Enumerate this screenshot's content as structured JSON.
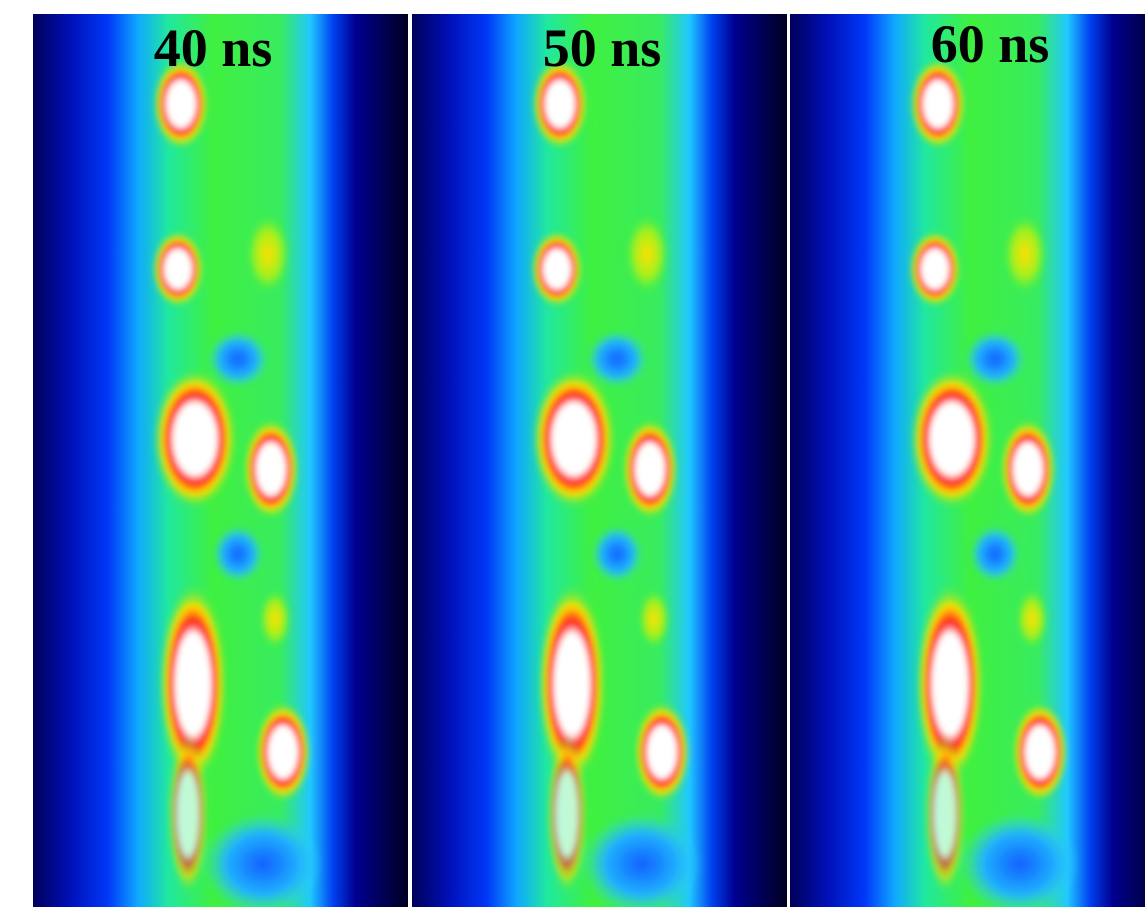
{
  "panels": [
    {
      "label": "40 ns"
    },
    {
      "label": "50 ns"
    },
    {
      "label": "60 ns"
    }
  ]
}
